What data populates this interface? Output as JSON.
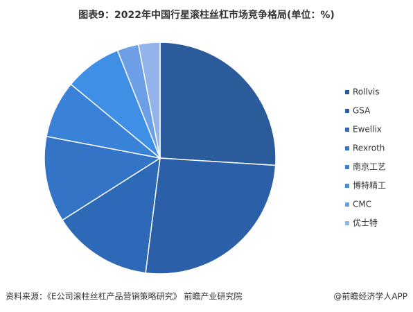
{
  "chart_data": {
    "type": "pie",
    "title": "图表9：2022年中国行星滚柱丝杠市场竞争格局(单位：%)",
    "categories": [
      "Rollvis",
      "GSA",
      "Ewellix",
      "Rexroth",
      "南京工艺",
      "博特精工",
      "CMC",
      "优士特"
    ],
    "values": [
      26,
      26,
      14,
      12,
      8,
      8,
      3,
      3
    ],
    "colors": [
      "#2c5b9c",
      "#2b60a9",
      "#2e69b7",
      "#3474c7",
      "#3a82d8",
      "#3f8fe6",
      "#6d9fe6",
      "#93b4ea"
    ],
    "legend": "right",
    "source": "资料来源：《E公司滚柱丝杠产品营销策略研究》 前瞻产业研究院",
    "credit": "@前瞻经济学人APP"
  }
}
